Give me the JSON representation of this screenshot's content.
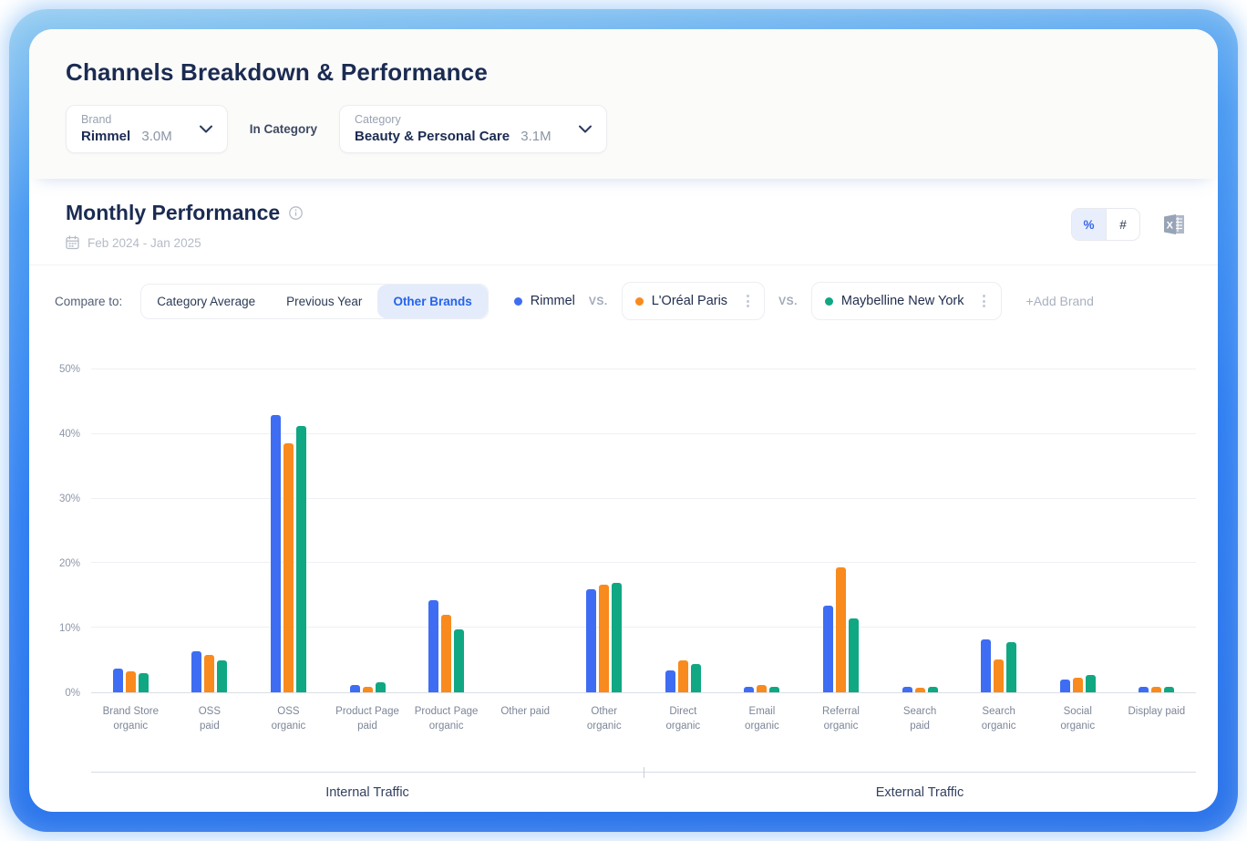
{
  "header": {
    "title": "Channels Breakdown & Performance",
    "brand_label": "Brand",
    "brand_value": "Rimmel",
    "brand_metric": "3.0M",
    "connector": "In Category",
    "category_label": "Category",
    "category_value": "Beauty & Personal Care",
    "category_metric": "3.1M"
  },
  "monthly": {
    "title": "Monthly Performance",
    "date_range": "Feb 2024 - Jan 2025",
    "unit_percent": "%",
    "unit_number": "#"
  },
  "compare": {
    "label": "Compare to:",
    "tabs": [
      {
        "label": "Category Average",
        "active": false
      },
      {
        "label": "Previous Year",
        "active": false
      },
      {
        "label": "Other Brands",
        "active": true
      }
    ],
    "vs_label": "VS.",
    "add_brand": "+Add Brand"
  },
  "chart_data": {
    "type": "bar",
    "categories": [
      [
        "Brand Store",
        "organic"
      ],
      [
        "OSS",
        "paid"
      ],
      [
        "OSS",
        "organic"
      ],
      [
        "Product Page",
        "paid"
      ],
      [
        "Product Page",
        "organic"
      ],
      [
        "Other paid"
      ],
      [
        "Other",
        "organic"
      ],
      [
        "Direct",
        "organic"
      ],
      [
        "Email",
        "organic"
      ],
      [
        "Referral",
        "organic"
      ],
      [
        "Search",
        "paid"
      ],
      [
        "Search",
        "organic"
      ],
      [
        "Social",
        "organic"
      ],
      [
        "Display paid"
      ]
    ],
    "series": [
      {
        "name": "Rimmel",
        "color": "#3E6DF3",
        "boxed": false,
        "values": [
          3.7,
          6.3,
          43.0,
          1.2,
          14.2,
          0,
          15.9,
          3.4,
          0.9,
          13.4,
          0.9,
          8.2,
          2.0,
          0.9
        ]
      },
      {
        "name": "L'Oréal Paris",
        "color": "#F98A1D",
        "boxed": true,
        "values": [
          3.3,
          5.8,
          38.5,
          0.8,
          12.0,
          0,
          16.6,
          4.9,
          1.2,
          19.4,
          0.7,
          5.1,
          2.3,
          0.9
        ]
      },
      {
        "name": "Maybelline New York",
        "color": "#10A783",
        "boxed": true,
        "values": [
          2.9,
          4.9,
          41.3,
          1.6,
          9.8,
          0,
          16.9,
          4.4,
          0.9,
          11.5,
          0.9,
          7.8,
          2.7,
          0.8
        ]
      }
    ],
    "ylim": [
      0,
      50
    ],
    "ytick_step": 10,
    "ytick_suffix": "%",
    "grid": true,
    "legend_position": "top",
    "sections": [
      {
        "label": "Internal Traffic",
        "span": 7
      },
      {
        "label": "External Traffic",
        "span": 7
      }
    ]
  }
}
